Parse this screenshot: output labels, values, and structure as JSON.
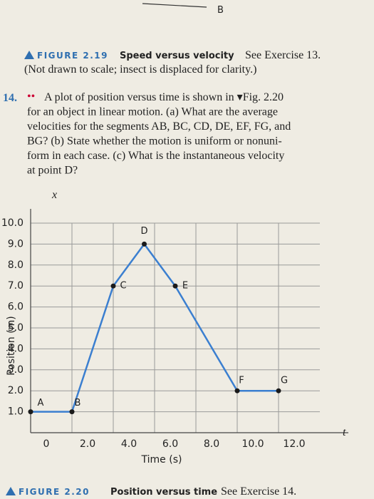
{
  "top_fragment": "B",
  "figure_219": {
    "label": "FIGURE 2.19",
    "title": "Speed versus velocity",
    "reference": "See Exercise 13.",
    "note": "(Not drawn to scale; insect is displaced for clarity.)"
  },
  "exercise": {
    "number": "14.",
    "level": "••",
    "lines": [
      "A plot of position versus time is shown in ▾Fig. 2.20",
      "for an object in linear motion. (a) What are the average",
      "velocities for the segments AB, BC, CD, DE, EF, FG, and",
      "BG? (b) State whether the motion is uniform or nonuni-",
      "form in each case. (c) What is the instantaneous velocity",
      "at point D?"
    ]
  },
  "chart_data": {
    "type": "line",
    "color": "#3b7fd0",
    "point_color": "#1a1a1a",
    "x_axis_symbol": "t",
    "y_axis_symbol": "x",
    "xlabel": "Time (s)",
    "ylabel": "Position (m)",
    "x": [
      0,
      2,
      4,
      5.5,
      7,
      10,
      12
    ],
    "values": [
      1,
      1,
      7,
      9,
      7,
      2,
      2
    ],
    "point_labels": [
      "A",
      "B",
      "C",
      "D",
      "E",
      "F",
      "G"
    ],
    "xlim": [
      0,
      14
    ],
    "ylim": [
      0,
      10
    ],
    "xticks": [
      0,
      {
        "value": 2,
        "label": "2.0"
      },
      {
        "value": 4,
        "label": "4.0"
      },
      {
        "value": 6,
        "label": "6.0"
      },
      {
        "value": 8,
        "label": "8.0"
      },
      {
        "value": 10,
        "label": "10.0"
      },
      {
        "value": 12,
        "label": "12.0"
      }
    ],
    "yticks": [
      {
        "value": 1,
        "label": "1.0"
      },
      {
        "value": 2,
        "label": "2.0"
      },
      {
        "value": 3,
        "label": "3.0"
      },
      {
        "value": 4,
        "label": "4.0"
      },
      {
        "value": 5,
        "label": "5.0"
      },
      {
        "value": 6,
        "label": "6.0"
      },
      {
        "value": 7,
        "label": "7.0"
      },
      {
        "value": 8,
        "label": "8.0"
      },
      {
        "value": 9,
        "label": "9.0"
      },
      {
        "value": 10,
        "label": "10.0"
      }
    ],
    "grid": true
  },
  "figure_220": {
    "label": "FIGURE 2.20",
    "title": "Position versus time",
    "reference": "See Exercise 14."
  }
}
